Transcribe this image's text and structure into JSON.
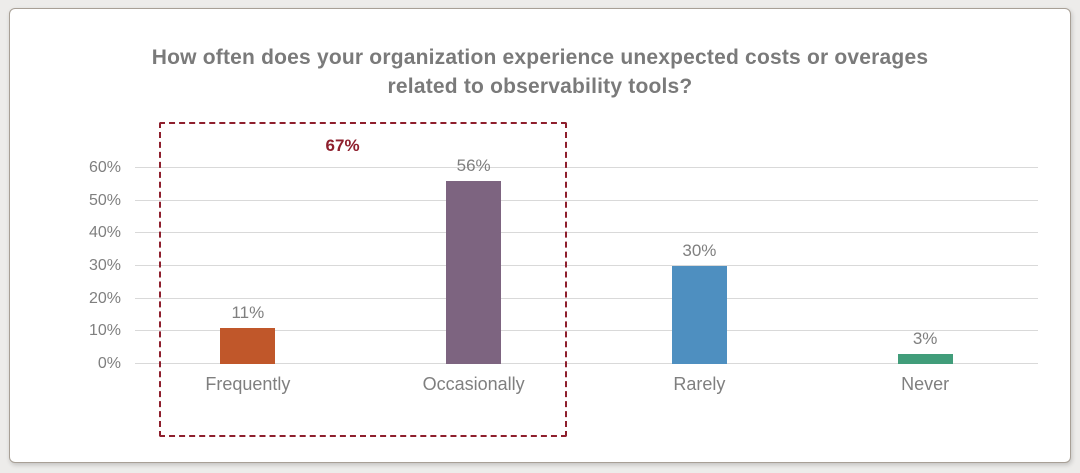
{
  "chart_data": {
    "type": "bar",
    "title": "How often does your organization experience unexpected costs or overages related to observability tools?",
    "categories": [
      "Frequently",
      "Occasionally",
      "Rarely",
      "Never"
    ],
    "values": [
      11,
      56,
      30,
      3
    ],
    "value_labels": [
      "11%",
      "56%",
      "30%",
      "3%"
    ],
    "bar_colors": [
      "#c0572a",
      "#7d6480",
      "#4e8fc0",
      "#419d7a"
    ],
    "y_ticks": [
      0,
      10,
      20,
      30,
      40,
      50,
      60
    ],
    "y_tick_labels": [
      "0%",
      "10%",
      "20%",
      "30%",
      "40%",
      "50%",
      "60%"
    ],
    "ylim": [
      0,
      60
    ],
    "xlabel": "",
    "ylabel": "",
    "grid": true,
    "legend": false,
    "annotation": {
      "label": "67%",
      "color": "#8e1f2d",
      "highlight_categories": [
        "Frequently",
        "Occasionally"
      ]
    }
  },
  "colors": {
    "title_text": "#7a7a7a",
    "axis_text": "#7f7f7f",
    "gridline": "#d9d9d9",
    "card_background": "#ffffff",
    "card_border": "#a8a096",
    "page_background": "#edecea",
    "highlight": "#8e1f2d"
  }
}
